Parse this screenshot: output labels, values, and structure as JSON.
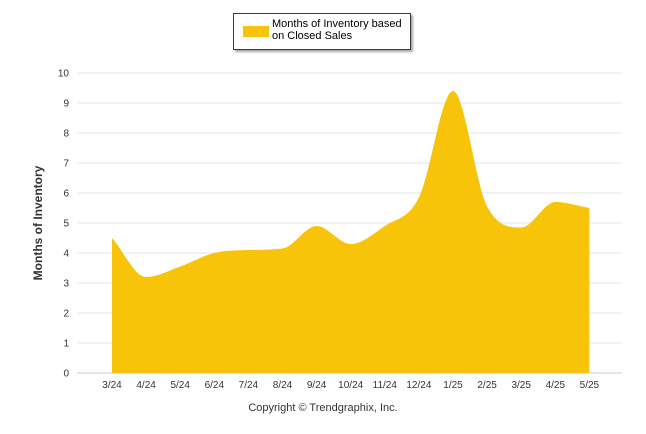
{
  "colors": {
    "fill": "#F7C409",
    "grid": "#e6e6e6",
    "axis": "#cccccc"
  },
  "legend": {
    "label": "Months of Inventory based on Closed Sales"
  },
  "footer": {
    "copyright": "Copyright © Trendgraphix, Inc."
  },
  "chart_data": {
    "type": "area",
    "title": "",
    "xlabel": "",
    "ylabel": "Months of Inventory",
    "ylim": [
      0,
      10
    ],
    "yticks": [
      0,
      1,
      2,
      3,
      4,
      5,
      6,
      7,
      8,
      9,
      10
    ],
    "grid": true,
    "legend_position": "top-center",
    "categories": [
      "3/24",
      "4/24",
      "5/24",
      "6/24",
      "7/24",
      "8/24",
      "9/24",
      "10/24",
      "11/24",
      "12/24",
      "1/25",
      "2/25",
      "3/25",
      "4/25",
      "5/25"
    ],
    "series": [
      {
        "name": "Months of Inventory based on Closed Sales",
        "values": [
          4.5,
          3.2,
          3.55,
          4.0,
          4.1,
          4.15,
          4.9,
          4.3,
          4.9,
          5.85,
          9.4,
          5.55,
          4.85,
          5.7,
          5.5
        ]
      }
    ]
  }
}
